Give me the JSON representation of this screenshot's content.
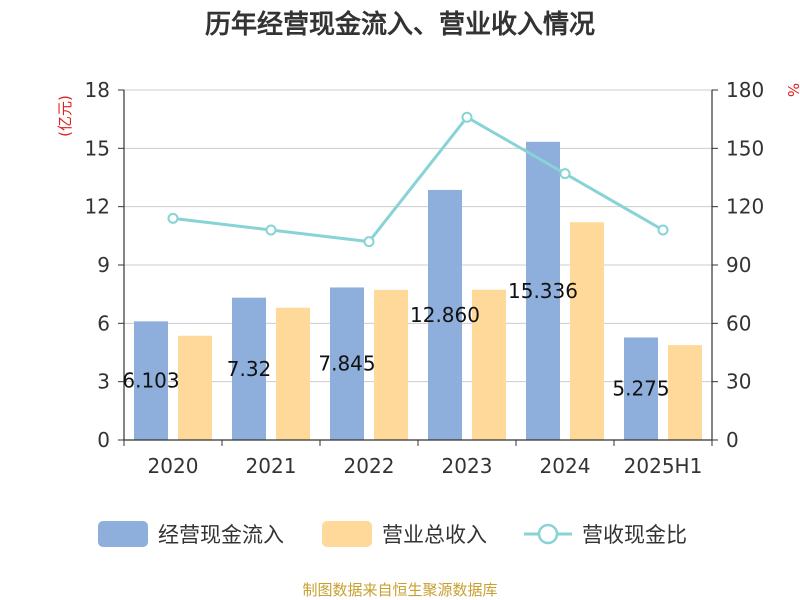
{
  "chart_data": {
    "type": "bar",
    "title": "历年经营现金流入、营业收入情况",
    "categories": [
      "2020",
      "2021",
      "2022",
      "2023",
      "2024",
      "2025H1"
    ],
    "y_left": {
      "unit": "(亿元)",
      "ticks": [
        "0",
        "3",
        "6",
        "9",
        "12",
        "15",
        "18"
      ],
      "ylim": [
        0,
        18
      ]
    },
    "y_right": {
      "unit": "%",
      "ticks": [
        "0",
        "30",
        "60",
        "90",
        "120",
        "150",
        "180"
      ],
      "ylim": [
        0,
        180
      ]
    },
    "grid": true,
    "series": [
      {
        "name": "经营现金流入",
        "type": "bar",
        "axis": "left",
        "color": "#8eaedb",
        "values": [
          6.103,
          7.32,
          7.845,
          12.86,
          15.336,
          5.275
        ],
        "labels": [
          "6.103",
          "7.32",
          "7.845",
          "12.860",
          "15.336",
          "5.275"
        ]
      },
      {
        "name": "营业总收入",
        "type": "bar",
        "axis": "left",
        "color": "#ffd99a",
        "values": [
          5.36,
          6.8,
          7.72,
          7.73,
          11.2,
          4.88
        ]
      },
      {
        "name": "营收现金比",
        "type": "line",
        "axis": "right",
        "color": "#88d3d6",
        "values": [
          114,
          108,
          102,
          166,
          137,
          108
        ]
      }
    ],
    "legend_position": "bottom"
  },
  "source": "制图数据来自恒生聚源数据库"
}
